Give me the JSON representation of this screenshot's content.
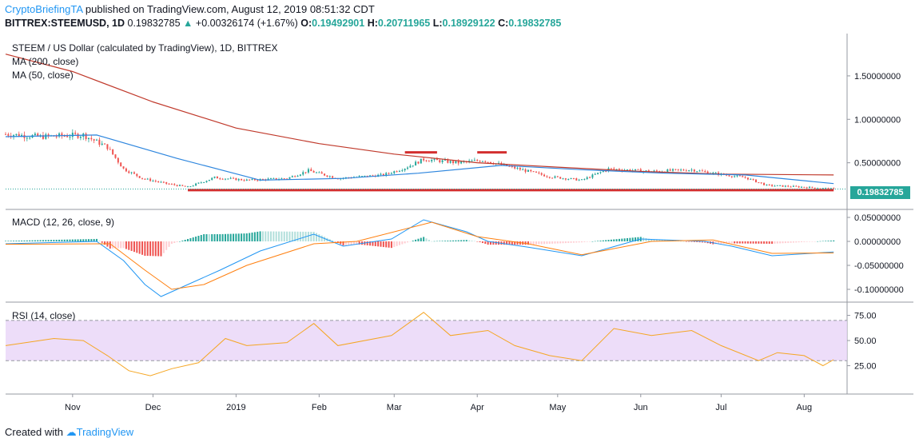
{
  "header": {
    "author": "CryptoBriefingTA",
    "published_text": "published on TradingView.com, August 12, 2019 08:51:32 CDT",
    "symbol": "BITTREX:STEEMUSD, 1D",
    "last": "0.19832785",
    "change_arrow": "▲",
    "change": "+0.00326174 (+1.67%)",
    "o_label": "O:",
    "o_value": "0.19492901",
    "h_label": "H:",
    "h_value": "0.20711965",
    "l_label": "L:",
    "l_value": "0.18929122",
    "c_label": "C:",
    "c_value": "0.19832785"
  },
  "panes": {
    "price": {
      "title": "STEEM / US Dollar (calculated by TradingView), 1D, BITTREX",
      "ma200": "MA (200, close)",
      "ma50": "MA (50, close)",
      "last_price_tag": "0.19832785"
    },
    "macd": {
      "title": "MACD (12, 26, close, 9)"
    },
    "rsi": {
      "title": "RSI (14, close)"
    }
  },
  "footer": {
    "created_with": "Created with",
    "brand": "TradingView"
  },
  "colors": {
    "up": "#26a69a",
    "down": "#ef5350",
    "ma200": "#c0392b",
    "ma50": "#2e86de",
    "macd_line": "#2196f3",
    "signal_line": "#ff7f0e",
    "rsi_line": "#f5a623",
    "rsi_band": "#e9d5f7",
    "support_line": "#d32f2f"
  },
  "chart_data": [
    {
      "type": "candlestick",
      "title": "STEEM / US Dollar (calculated by TradingView), 1D, BITTREX",
      "x_ticks": [
        "Nov",
        "Dec",
        "2019",
        "Feb",
        "Mar",
        "Apr",
        "May",
        "Jun",
        "Jul",
        "Aug"
      ],
      "y_ticks": [
        "1.50000000",
        "1.00000000",
        "0.50000000"
      ],
      "last_price": 0.19832785,
      "ylim": [
        0.0,
        1.95
      ],
      "close_path": [
        {
          "date": "2018-10-07",
          "close": 0.83
        },
        {
          "date": "2018-10-20",
          "close": 0.8
        },
        {
          "date": "2018-11-05",
          "close": 0.82
        },
        {
          "date": "2018-11-14",
          "close": 0.68
        },
        {
          "date": "2018-11-20",
          "close": 0.43
        },
        {
          "date": "2018-11-27",
          "close": 0.32
        },
        {
          "date": "2018-12-06",
          "close": 0.26
        },
        {
          "date": "2018-12-14",
          "close": 0.22
        },
        {
          "date": "2018-12-24",
          "close": 0.33
        },
        {
          "date": "2019-01-05",
          "close": 0.3
        },
        {
          "date": "2019-01-20",
          "close": 0.32
        },
        {
          "date": "2019-01-28",
          "close": 0.41
        },
        {
          "date": "2019-02-08",
          "close": 0.32
        },
        {
          "date": "2019-02-25",
          "close": 0.36
        },
        {
          "date": "2019-03-05",
          "close": 0.44
        },
        {
          "date": "2019-03-12",
          "close": 0.54
        },
        {
          "date": "2019-03-25",
          "close": 0.5
        },
        {
          "date": "2019-04-03",
          "close": 0.53
        },
        {
          "date": "2019-04-15",
          "close": 0.44
        },
        {
          "date": "2019-04-28",
          "close": 0.34
        },
        {
          "date": "2019-05-10",
          "close": 0.3
        },
        {
          "date": "2019-05-20",
          "close": 0.43
        },
        {
          "date": "2019-06-05",
          "close": 0.4
        },
        {
          "date": "2019-06-20",
          "close": 0.42
        },
        {
          "date": "2019-06-28",
          "close": 0.38
        },
        {
          "date": "2019-07-10",
          "close": 0.33
        },
        {
          "date": "2019-07-18",
          "close": 0.24
        },
        {
          "date": "2019-08-01",
          "close": 0.22
        },
        {
          "date": "2019-08-12",
          "close": 0.198
        }
      ],
      "ma200": [
        {
          "date": "2018-10-07",
          "value": 1.75
        },
        {
          "date": "2018-11-01",
          "value": 1.55
        },
        {
          "date": "2018-12-01",
          "value": 1.2
        },
        {
          "date": "2019-01-01",
          "value": 0.9
        },
        {
          "date": "2019-02-01",
          "value": 0.72
        },
        {
          "date": "2019-03-01",
          "value": 0.6
        },
        {
          "date": "2019-04-01",
          "value": 0.5
        },
        {
          "date": "2019-05-01",
          "value": 0.45
        },
        {
          "date": "2019-06-01",
          "value": 0.4
        },
        {
          "date": "2019-07-01",
          "value": 0.37
        },
        {
          "date": "2019-08-12",
          "value": 0.36
        }
      ],
      "ma50": [
        {
          "date": "2018-10-07",
          "value": 0.8
        },
        {
          "date": "2018-11-10",
          "value": 0.82
        },
        {
          "date": "2018-12-10",
          "value": 0.55
        },
        {
          "date": "2019-01-10",
          "value": 0.3
        },
        {
          "date": "2019-02-10",
          "value": 0.32
        },
        {
          "date": "2019-03-10",
          "value": 0.38
        },
        {
          "date": "2019-04-10",
          "value": 0.47
        },
        {
          "date": "2019-05-10",
          "value": 0.42
        },
        {
          "date": "2019-06-10",
          "value": 0.38
        },
        {
          "date": "2019-07-10",
          "value": 0.36
        },
        {
          "date": "2019-08-12",
          "value": 0.26
        }
      ],
      "support_line": {
        "from": "2018-12-14",
        "to": "2019-08-12",
        "value": 0.185
      },
      "resistance_marks": [
        {
          "from": "2019-03-05",
          "to": "2019-03-17",
          "value": 0.62
        },
        {
          "from": "2019-04-01",
          "to": "2019-04-12",
          "value": 0.62
        }
      ]
    },
    {
      "type": "line",
      "title": "MACD (12, 26, close, 9)",
      "y_ticks": [
        "0.05000000",
        "0.00000000",
        "-0.05000000",
        "-0.10000000"
      ],
      "ylim": [
        -0.12,
        0.06
      ],
      "macd": [
        {
          "date": "2018-10-07",
          "value": -0.005
        },
        {
          "date": "2018-11-10",
          "value": 0.0
        },
        {
          "date": "2018-11-20",
          "value": -0.04
        },
        {
          "date": "2018-11-28",
          "value": -0.09
        },
        {
          "date": "2018-12-04",
          "value": -0.115
        },
        {
          "date": "2018-12-14",
          "value": -0.09
        },
        {
          "date": "2018-12-26",
          "value": -0.06
        },
        {
          "date": "2019-01-10",
          "value": -0.02
        },
        {
          "date": "2019-01-30",
          "value": 0.015
        },
        {
          "date": "2019-02-10",
          "value": -0.01
        },
        {
          "date": "2019-02-28",
          "value": 0.005
        },
        {
          "date": "2019-03-12",
          "value": 0.045
        },
        {
          "date": "2019-03-28",
          "value": 0.02
        },
        {
          "date": "2019-04-05",
          "value": 0.0
        },
        {
          "date": "2019-04-20",
          "value": -0.012
        },
        {
          "date": "2019-05-10",
          "value": -0.03
        },
        {
          "date": "2019-06-01",
          "value": 0.005
        },
        {
          "date": "2019-06-25",
          "value": 0.0
        },
        {
          "date": "2019-07-05",
          "value": -0.01
        },
        {
          "date": "2019-07-20",
          "value": -0.03
        },
        {
          "date": "2019-08-12",
          "value": -0.022
        }
      ],
      "signal": [
        {
          "date": "2018-10-07",
          "value": -0.006
        },
        {
          "date": "2018-11-15",
          "value": -0.005
        },
        {
          "date": "2018-11-28",
          "value": -0.06
        },
        {
          "date": "2018-12-08",
          "value": -0.1
        },
        {
          "date": "2018-12-20",
          "value": -0.09
        },
        {
          "date": "2019-01-05",
          "value": -0.05
        },
        {
          "date": "2019-01-30",
          "value": -0.005
        },
        {
          "date": "2019-02-15",
          "value": 0.0
        },
        {
          "date": "2019-03-15",
          "value": 0.04
        },
        {
          "date": "2019-04-01",
          "value": 0.01
        },
        {
          "date": "2019-04-20",
          "value": -0.005
        },
        {
          "date": "2019-05-10",
          "value": -0.028
        },
        {
          "date": "2019-06-05",
          "value": 0.0
        },
        {
          "date": "2019-06-28",
          "value": 0.003
        },
        {
          "date": "2019-07-20",
          "value": -0.025
        },
        {
          "date": "2019-08-12",
          "value": -0.024
        }
      ]
    },
    {
      "type": "line",
      "title": "RSI (14, close)",
      "y_ticks": [
        "75.00",
        "50.00",
        "25.00"
      ],
      "ylim": [
        0,
        85
      ],
      "band": [
        30,
        70
      ],
      "rsi": [
        {
          "date": "2018-10-07",
          "value": 45
        },
        {
          "date": "2018-10-25",
          "value": 52
        },
        {
          "date": "2018-11-05",
          "value": 50
        },
        {
          "date": "2018-11-14",
          "value": 35
        },
        {
          "date": "2018-11-22",
          "value": 20
        },
        {
          "date": "2018-11-30",
          "value": 15
        },
        {
          "date": "2018-12-08",
          "value": 22
        },
        {
          "date": "2018-12-18",
          "value": 28
        },
        {
          "date": "2018-12-28",
          "value": 52
        },
        {
          "date": "2019-01-05",
          "value": 45
        },
        {
          "date": "2019-01-20",
          "value": 48
        },
        {
          "date": "2019-01-30",
          "value": 67
        },
        {
          "date": "2019-02-08",
          "value": 45
        },
        {
          "date": "2019-02-28",
          "value": 55
        },
        {
          "date": "2019-03-12",
          "value": 78
        },
        {
          "date": "2019-03-22",
          "value": 55
        },
        {
          "date": "2019-04-05",
          "value": 60
        },
        {
          "date": "2019-04-15",
          "value": 45
        },
        {
          "date": "2019-04-28",
          "value": 35
        },
        {
          "date": "2019-05-10",
          "value": 30
        },
        {
          "date": "2019-05-22",
          "value": 62
        },
        {
          "date": "2019-06-05",
          "value": 55
        },
        {
          "date": "2019-06-20",
          "value": 60
        },
        {
          "date": "2019-07-01",
          "value": 45
        },
        {
          "date": "2019-07-15",
          "value": 30
        },
        {
          "date": "2019-07-22",
          "value": 38
        },
        {
          "date": "2019-08-01",
          "value": 35
        },
        {
          "date": "2019-08-08",
          "value": 25
        },
        {
          "date": "2019-08-12",
          "value": 31
        }
      ]
    }
  ]
}
